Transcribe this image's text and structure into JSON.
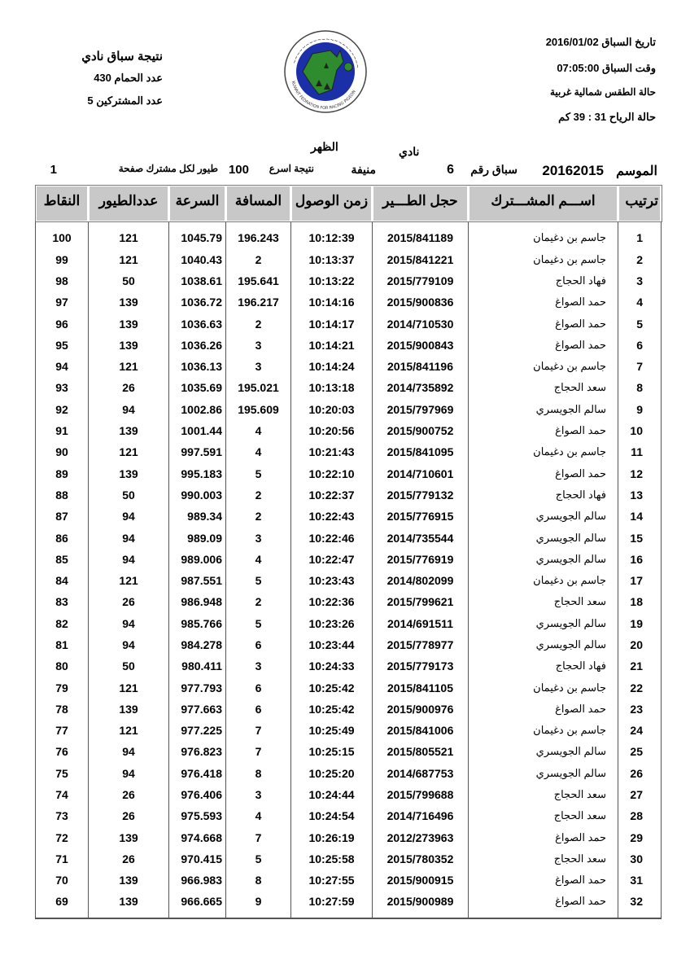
{
  "header_right": {
    "race_date": "تاريخ السباق 2016/01/02",
    "race_time": "وقت السباق 07:05:00",
    "weather": "حالة الطقس شمالية غربية",
    "wind": "حالة الرياح 31 : 39 كم"
  },
  "header_left": {
    "title": "نتيجة سباق نادي",
    "pigeons": "عدد الحمام 430",
    "participants": "عدد المشتركين 5"
  },
  "logo": {
    "text": "الاتحاد الكويتي لسباق حمام الزاجل",
    "text_en": "KUWAIT FEDRATION FOR RACING PIGEON",
    "colors": {
      "ring": "#1a2fa8",
      "land": "#2e8b2e"
    }
  },
  "meta": {
    "club_label": "نادي",
    "area": "الظهر",
    "season_label": "الموسم",
    "season": "20162015",
    "race_no_label": "سباق رقم",
    "race_no": "6",
    "location": "منيفة",
    "fastest_label": "نتيجة اسرع",
    "fastest": "100",
    "per_member_label": "طيور لكل مشترك صفحة",
    "page": "1"
  },
  "table": {
    "headers": [
      "ترتيب",
      "اســـم المشـــترك",
      "حجل الطـــير",
      "زمن الوصول",
      "المسافة",
      "السرعة",
      "عددالطيور",
      "النقاط"
    ],
    "rows": [
      [
        "1",
        "جاسم بن دغيمان",
        "2015/841189",
        "10:12:39",
        "196.243",
        "1045.79",
        "121",
        "100"
      ],
      [
        "2",
        "جاسم بن دغيمان",
        "2015/841221",
        "10:13:37",
        "2",
        "1040.43",
        "121",
        "99"
      ],
      [
        "3",
        "فهاد الحجاج",
        "2015/779109",
        "10:13:22",
        "195.641",
        "1038.61",
        "50",
        "98"
      ],
      [
        "4",
        "حمد الصواغ",
        "2015/900836",
        "10:14:16",
        "196.217",
        "1036.72",
        "139",
        "97"
      ],
      [
        "5",
        "حمد الصواغ",
        "2014/710530",
        "10:14:17",
        "2",
        "1036.63",
        "139",
        "96"
      ],
      [
        "6",
        "حمد الصواغ",
        "2015/900843",
        "10:14:21",
        "3",
        "1036.26",
        "139",
        "95"
      ],
      [
        "7",
        "جاسم بن دغيمان",
        "2015/841196",
        "10:14:24",
        "3",
        "1036.13",
        "121",
        "94"
      ],
      [
        "8",
        "سعد الحجاج",
        "2014/735892",
        "10:13:18",
        "195.021",
        "1035.69",
        "26",
        "93"
      ],
      [
        "9",
        "سالم الجويسري",
        "2015/797969",
        "10:20:03",
        "195.609",
        "1002.86",
        "94",
        "92"
      ],
      [
        "10",
        "حمد الصواغ",
        "2015/900752",
        "10:20:56",
        "4",
        "1001.44",
        "139",
        "91"
      ],
      [
        "11",
        "جاسم بن دغيمان",
        "2015/841095",
        "10:21:43",
        "4",
        "997.591",
        "121",
        "90"
      ],
      [
        "12",
        "حمد الصواغ",
        "2014/710601",
        "10:22:10",
        "5",
        "995.183",
        "139",
        "89"
      ],
      [
        "13",
        "فهاد الحجاج",
        "2015/779132",
        "10:22:37",
        "2",
        "990.003",
        "50",
        "88"
      ],
      [
        "14",
        "سالم الجويسري",
        "2015/776915",
        "10:22:43",
        "2",
        "989.34",
        "94",
        "87"
      ],
      [
        "15",
        "سالم الجويسري",
        "2014/735544",
        "10:22:46",
        "3",
        "989.09",
        "94",
        "86"
      ],
      [
        "16",
        "سالم الجويسري",
        "2015/776919",
        "10:22:47",
        "4",
        "989.006",
        "94",
        "85"
      ],
      [
        "17",
        "جاسم بن دغيمان",
        "2014/802099",
        "10:23:43",
        "5",
        "987.551",
        "121",
        "84"
      ],
      [
        "18",
        "سعد الحجاج",
        "2015/799621",
        "10:22:36",
        "2",
        "986.948",
        "26",
        "83"
      ],
      [
        "19",
        "سالم الجويسري",
        "2014/691511",
        "10:23:26",
        "5",
        "985.766",
        "94",
        "82"
      ],
      [
        "20",
        "سالم الجويسري",
        "2015/778977",
        "10:23:44",
        "6",
        "984.278",
        "94",
        "81"
      ],
      [
        "21",
        "فهاد الحجاج",
        "2015/779173",
        "10:24:33",
        "3",
        "980.411",
        "50",
        "80"
      ],
      [
        "22",
        "جاسم بن دغيمان",
        "2015/841105",
        "10:25:42",
        "6",
        "977.793",
        "121",
        "79"
      ],
      [
        "23",
        "حمد الصواغ",
        "2015/900976",
        "10:25:42",
        "6",
        "977.663",
        "139",
        "78"
      ],
      [
        "24",
        "جاسم بن دغيمان",
        "2015/841006",
        "10:25:49",
        "7",
        "977.225",
        "121",
        "77"
      ],
      [
        "25",
        "سالم الجويسري",
        "2015/805521",
        "10:25:15",
        "7",
        "976.823",
        "94",
        "76"
      ],
      [
        "26",
        "سالم الجويسري",
        "2014/687753",
        "10:25:20",
        "8",
        "976.418",
        "94",
        "75"
      ],
      [
        "27",
        "سعد الحجاج",
        "2015/799688",
        "10:24:44",
        "3",
        "976.406",
        "26",
        "74"
      ],
      [
        "28",
        "سعد الحجاج",
        "2014/716496",
        "10:24:54",
        "4",
        "975.593",
        "26",
        "73"
      ],
      [
        "29",
        "حمد الصواغ",
        "2012/273963",
        "10:26:19",
        "7",
        "974.668",
        "139",
        "72"
      ],
      [
        "30",
        "سعد الحجاج",
        "2015/780352",
        "10:25:58",
        "5",
        "970.415",
        "26",
        "71"
      ],
      [
        "31",
        "حمد الصواغ",
        "2015/900915",
        "10:27:55",
        "8",
        "966.983",
        "139",
        "70"
      ],
      [
        "32",
        "حمد الصواغ",
        "2015/900989",
        "10:27:59",
        "9",
        "966.665",
        "139",
        "69"
      ]
    ]
  }
}
